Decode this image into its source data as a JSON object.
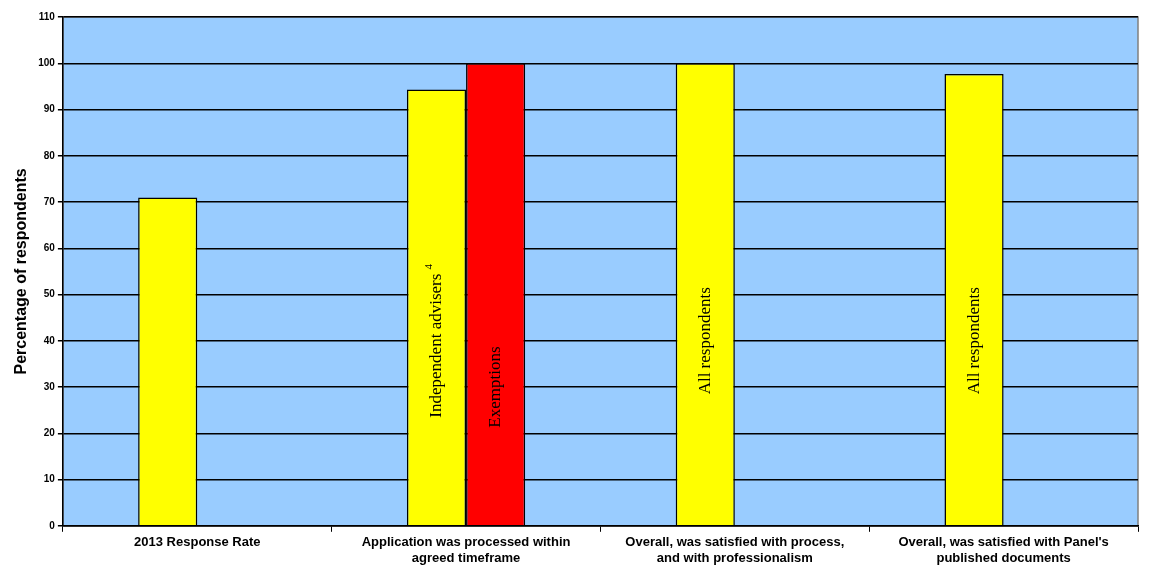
{
  "chart_data": {
    "type": "bar",
    "ylabel": "Percentage of respondents",
    "categories": [
      "2013 Response Rate",
      "Application was processed within agreed timeframe",
      "Overall, was satisfied with process, and with professionalism",
      "Overall, was satisfied with Panel's published documents"
    ],
    "series": [
      {
        "color": "#ffff00",
        "values": [
          71,
          94.3,
          100,
          97.7
        ]
      },
      {
        "color": "#ff0000",
        "values": [
          null,
          100,
          null,
          null
        ]
      }
    ],
    "ylim": [
      0,
      110
    ],
    "yticks": [
      0,
      10,
      20,
      30,
      40,
      50,
      60,
      70,
      80,
      90,
      100,
      110
    ],
    "grid": "y",
    "legend": false,
    "annotations": [
      {
        "text": "Independent advisers $^{4}$",
        "x": "Application was processed within agreed timeframe",
        "y": 40
      },
      {
        "text": "Exemptions",
        "x": "Application was processed within agreed timeframe",
        "y": 30
      },
      {
        "text": "All respondents",
        "x": "Overall, was satisfied with process, and with professionalism",
        "y": 40
      },
      {
        "text": "All respondents",
        "x": "Overall, was satisfied with Panel's published documents",
        "y": 40
      }
    ]
  }
}
